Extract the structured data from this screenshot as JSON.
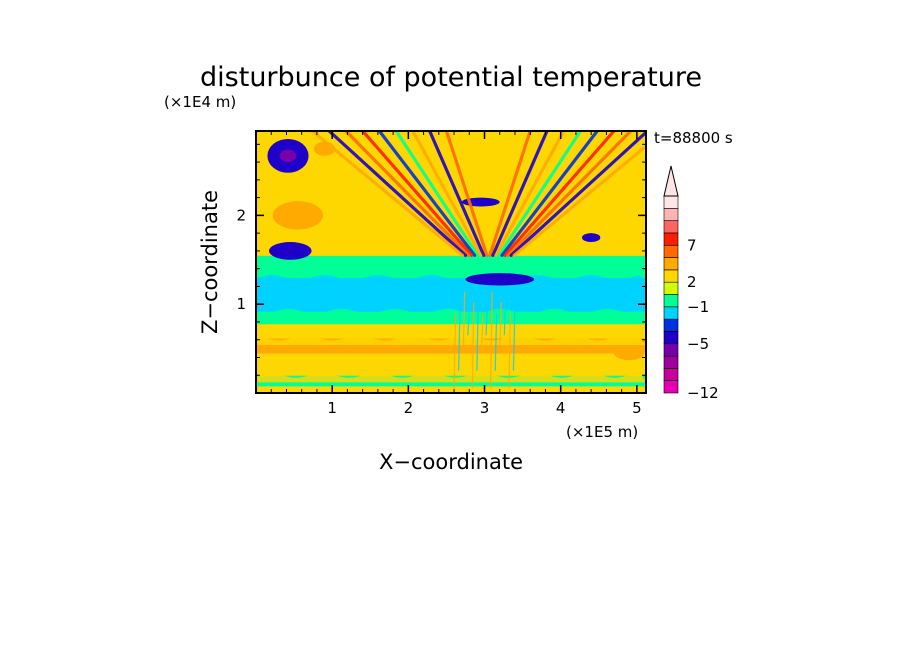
{
  "chart_data": {
    "type": "heatmap",
    "title": "disturbunce of potential temperature",
    "time_label": "t=88800 s",
    "xlabel": "X−coordinate",
    "ylabel": "Z−coordinate",
    "x_unit_label": "(×1E5 m)",
    "y_unit_label": "(×1E4 m)",
    "xlim": [
      0,
      5.12
    ],
    "ylim": [
      0,
      2.95
    ],
    "x_ticks": [
      1,
      2,
      3,
      4,
      5
    ],
    "y_ticks": [
      1,
      2
    ],
    "x_tick_labels": [
      "1",
      "2",
      "3",
      "4",
      "5"
    ],
    "y_tick_labels": [
      "1",
      "2"
    ],
    "colorbar": {
      "levels": [
        "−12",
        "−5",
        "−1",
        "2",
        "7"
      ],
      "colors": [
        "#e600b4",
        "#c8009c",
        "#a0009e",
        "#7800aa",
        "#1e00c8",
        "#0032dc",
        "#00d2ff",
        "#00ff96",
        "#d2ff00",
        "#ffd700",
        "#ffaa00",
        "#ff6a00",
        "#ff1e00",
        "#ff6464",
        "#ffb4b4",
        "#ffe6e6"
      ],
      "extend": "max"
    },
    "bands": [
      {
        "z": [
          0.0,
          0.08
        ],
        "value": "yellow"
      },
      {
        "z": [
          0.08,
          0.2
        ],
        "value": "green"
      },
      {
        "z": [
          0.2,
          0.45
        ],
        "value": "yellow"
      },
      {
        "z": [
          0.45,
          0.62
        ],
        "value": "orange"
      },
      {
        "z": [
          0.62,
          0.78
        ],
        "value": "yellow"
      },
      {
        "z": [
          0.78,
          0.92
        ],
        "value": "green"
      },
      {
        "z": [
          0.92,
          1.3
        ],
        "value": "cyan"
      },
      {
        "z": [
          1.3,
          1.55
        ],
        "value": "green"
      },
      {
        "z": [
          1.55,
          2.95
        ],
        "value": "yellow"
      }
    ],
    "features": [
      {
        "x": 0.42,
        "z": 2.67,
        "rx": 0.27,
        "rz": 0.19,
        "value": "blue"
      },
      {
        "x": 0.42,
        "z": 2.67,
        "rx": 0.11,
        "rz": 0.07,
        "value": "purple"
      },
      {
        "x": 0.55,
        "z": 2.0,
        "rx": 0.33,
        "rz": 0.16,
        "value": "orange"
      },
      {
        "x": 0.45,
        "z": 1.6,
        "rx": 0.28,
        "rz": 0.1,
        "value": "blue"
      },
      {
        "x": 3.2,
        "z": 1.28,
        "rx": 0.45,
        "rz": 0.07,
        "value": "blue"
      },
      {
        "x": 2.95,
        "z": 2.15,
        "rx": 0.25,
        "rz": 0.05,
        "value": "blue"
      },
      {
        "x": 4.4,
        "z": 1.75,
        "rx": 0.12,
        "rz": 0.05,
        "value": "blue"
      },
      {
        "x": 4.9,
        "z": 0.45,
        "rx": 0.2,
        "rz": 0.08,
        "value": "orange"
      },
      {
        "x": 0.9,
        "z": 2.75,
        "rx": 0.14,
        "rz": 0.08,
        "value": "orange"
      }
    ]
  }
}
